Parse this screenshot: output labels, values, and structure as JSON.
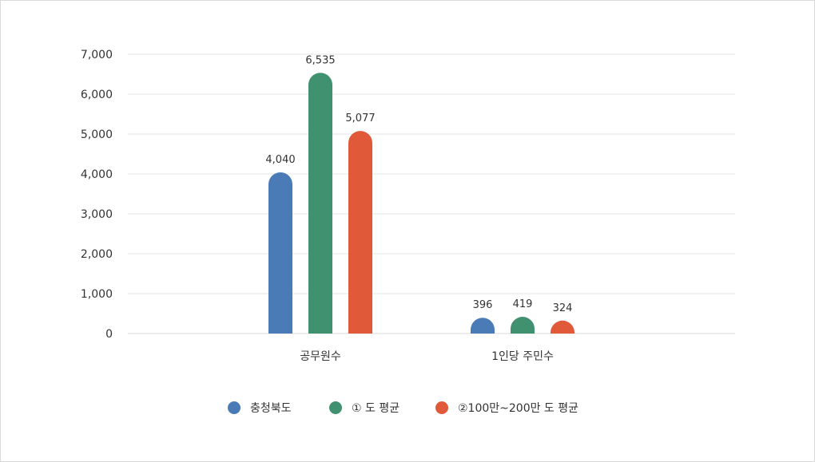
{
  "chart_data": {
    "type": "bar",
    "categories": [
      "공무원수",
      "1인당 주민수"
    ],
    "series": [
      {
        "name": "충청북도",
        "values": [
          4040,
          396
        ],
        "color": "#4a7bb7"
      },
      {
        "name": "① 도 평균",
        "values": [
          6535,
          419
        ],
        "color": "#3f9170"
      },
      {
        "name": "②100만~200만 도 평균",
        "values": [
          5077,
          324
        ],
        "color": "#e05a3a"
      }
    ],
    "data_labels": [
      [
        "4,040",
        "396"
      ],
      [
        "6,535",
        "419"
      ],
      [
        "5,077",
        "324"
      ]
    ],
    "yticks": [
      "0",
      "1,000",
      "2,000",
      "3,000",
      "4,000",
      "5,000",
      "6,000",
      "7,000"
    ],
    "ylim": [
      0,
      7000
    ],
    "grid": true,
    "legend_position": "bottom",
    "gridline_color": "#e6e6e6"
  }
}
